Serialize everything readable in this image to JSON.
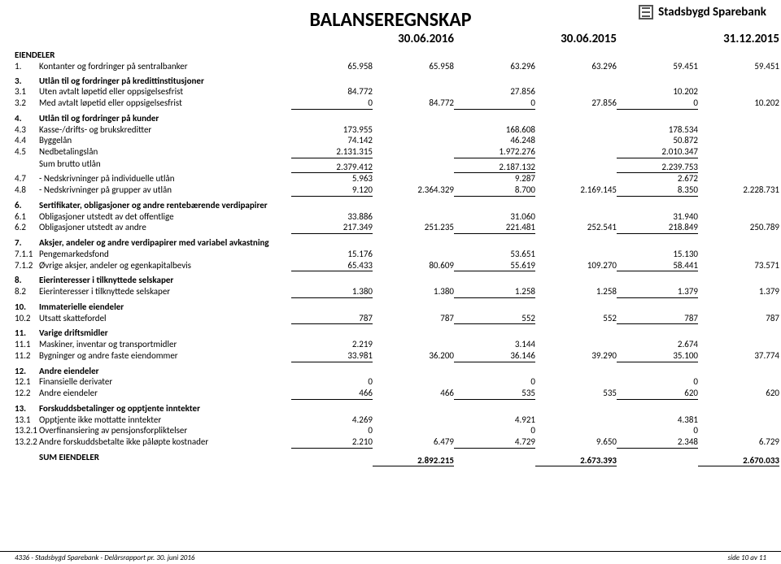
{
  "brand": "Stadsbygd Sparebank",
  "title": "BALANSEREGNSKAP",
  "dates": {
    "d1": "30.06.2016",
    "d2": "30.06.2015",
    "d3": "31.12.2015"
  },
  "sections": [
    {
      "header": "EIENDELER",
      "rows": [
        {
          "n": "1.",
          "t": "Kontanter og fordringer på sentralbanker",
          "v": [
            "65.958",
            "65.958",
            "63.296",
            "63.296",
            "59.451",
            "59.451"
          ]
        }
      ]
    },
    {
      "header": "",
      "rows": [
        {
          "n": "3.",
          "t": "Utlån til og fordringer på kredittinstitusjoner",
          "bold": true,
          "v": [
            "",
            "",
            "",
            "",
            "",
            ""
          ]
        },
        {
          "n": "3.1",
          "t": "Uten avtalt løpetid eller oppsigelsesfrist",
          "v": [
            "84.772",
            "",
            "27.856",
            "",
            "10.202",
            ""
          ]
        },
        {
          "n": "3.2",
          "t": "Med avtalt løpetid eller oppsigelsesfrist",
          "v": [
            "0",
            "84.772",
            "0",
            "27.856",
            "0",
            "10.202"
          ],
          "u": [
            0,
            2,
            4
          ]
        }
      ]
    },
    {
      "header": "",
      "rows": [
        {
          "n": "4.",
          "t": "Utlån til og fordringer på kunder",
          "bold": true,
          "v": [
            "",
            "",
            "",
            "",
            "",
            ""
          ]
        },
        {
          "n": "4.3",
          "t": "Kasse-/drifts- og brukskreditter",
          "v": [
            "173.955",
            "",
            "168.608",
            "",
            "178.534",
            ""
          ]
        },
        {
          "n": "4.4",
          "t": "Byggelån",
          "v": [
            "74.142",
            "",
            "46.248",
            "",
            "50.872",
            ""
          ]
        },
        {
          "n": "4.5",
          "t": "Nedbetalingslån",
          "v": [
            "2.131.315",
            "",
            "1.972.276",
            "",
            "2.010.347",
            ""
          ],
          "u": [
            0,
            2,
            4
          ]
        },
        {
          "n": "",
          "t": "Sum brutto utlån",
          "v": [
            "2.379.412",
            "",
            "2.187.132",
            "",
            "2.239.753",
            ""
          ],
          "u": [
            0,
            2,
            4
          ]
        },
        {
          "n": "4.7",
          "t": "- Nedskrivninger på individuelle utlån",
          "v": [
            "5.963",
            "",
            "9.287",
            "",
            "2.672",
            ""
          ]
        },
        {
          "n": "4.8",
          "t": "- Nedskrivninger på grupper av utlån",
          "v": [
            "9.120",
            "2.364.329",
            "8.700",
            "2.169.145",
            "8.350",
            "2.228.731"
          ],
          "u": [
            0,
            2,
            4
          ]
        }
      ]
    },
    {
      "header": "",
      "rows": [
        {
          "n": "6.",
          "t": "Sertifikater, obligasjoner og andre rentebærende verdipapirer",
          "bold": true,
          "v": [
            "",
            "",
            "",
            "",
            "",
            ""
          ]
        },
        {
          "n": "6.1",
          "t": "Obligasjoner utstedt av det offentlige",
          "v": [
            "33.886",
            "",
            "31.060",
            "",
            "31.940",
            ""
          ]
        },
        {
          "n": "6.2",
          "t": "Obligasjoner utstedt av andre",
          "v": [
            "217.349",
            "251.235",
            "221.481",
            "252.541",
            "218.849",
            "250.789"
          ],
          "u": [
            0,
            2,
            4
          ]
        }
      ]
    },
    {
      "header": "",
      "rows": [
        {
          "n": "7.",
          "t": "Aksjer, andeler og andre verdipapirer med variabel avkastning",
          "bold": true,
          "v": [
            "",
            "",
            "",
            "",
            "",
            ""
          ]
        },
        {
          "n": "7.1.1",
          "t": "Pengemarkedsfond",
          "v": [
            "15.176",
            "",
            "53.651",
            "",
            "15.130",
            ""
          ]
        },
        {
          "n": "7.1.2",
          "t": "Øvrige aksjer, andeler og egenkapitalbevis",
          "v": [
            "65.433",
            "80.609",
            "55.619",
            "109.270",
            "58.441",
            "73.571"
          ],
          "u": [
            0,
            2,
            4
          ]
        }
      ]
    },
    {
      "header": "",
      "rows": [
        {
          "n": "8.",
          "t": "Eierinteresser i tilknyttede selskaper",
          "bold": true,
          "v": [
            "",
            "",
            "",
            "",
            "",
            ""
          ]
        },
        {
          "n": "8.2",
          "t": "Eierinteresser i tilknyttede selskaper",
          "v": [
            "1.380",
            "1.380",
            "1.258",
            "1.258",
            "1.379",
            "1.379"
          ],
          "u": [
            0,
            2,
            4
          ]
        }
      ]
    },
    {
      "header": "",
      "rows": [
        {
          "n": "10.",
          "t": "Immaterielle eiendeler",
          "bold": true,
          "v": [
            "",
            "",
            "",
            "",
            "",
            ""
          ]
        },
        {
          "n": "10.2",
          "t": "Utsatt skattefordel",
          "v": [
            "787",
            "787",
            "552",
            "552",
            "787",
            "787"
          ],
          "u": [
            0,
            2,
            4
          ]
        }
      ]
    },
    {
      "header": "",
      "rows": [
        {
          "n": "11.",
          "t": "Varige driftsmidler",
          "bold": true,
          "v": [
            "",
            "",
            "",
            "",
            "",
            ""
          ]
        },
        {
          "n": "11.1",
          "t": "Maskiner, inventar og transportmidler",
          "v": [
            "2.219",
            "",
            "3.144",
            "",
            "2.674",
            ""
          ]
        },
        {
          "n": "11.2",
          "t": "Bygninger og andre faste eiendommer",
          "v": [
            "33.981",
            "36.200",
            "36.146",
            "39.290",
            "35.100",
            "37.774"
          ],
          "u": [
            0,
            2,
            4
          ]
        }
      ]
    },
    {
      "header": "",
      "rows": [
        {
          "n": "12.",
          "t": "Andre eiendeler",
          "bold": true,
          "v": [
            "",
            "",
            "",
            "",
            "",
            ""
          ]
        },
        {
          "n": "12.1",
          "t": "Finansielle derivater",
          "v": [
            "0",
            "",
            "0",
            "",
            "0",
            ""
          ]
        },
        {
          "n": "12.2",
          "t": "Andre eiendeler",
          "v": [
            "466",
            "466",
            "535",
            "535",
            "620",
            "620"
          ],
          "u": [
            0,
            2,
            4
          ]
        }
      ]
    },
    {
      "header": "",
      "rows": [
        {
          "n": "13.",
          "t": "Forskuddsbetalinger og opptjente inntekter",
          "bold": true,
          "v": [
            "",
            "",
            "",
            "",
            "",
            ""
          ]
        },
        {
          "n": "13.1",
          "t": "Opptjente ikke mottatte inntekter",
          "v": [
            "4.269",
            "",
            "4.921",
            "",
            "4.381",
            ""
          ]
        },
        {
          "n": "13.2.1",
          "t": "Overfinansiering av pensjonsforpliktelser",
          "v": [
            "0",
            "",
            "0",
            "",
            "0",
            ""
          ]
        },
        {
          "n": "13.2.2",
          "t": "Andre forskuddsbetalte ikke påløpte kostnader",
          "v": [
            "2.210",
            "6.479",
            "4.729",
            "9.650",
            "2.348",
            "6.729"
          ],
          "u": [
            0,
            2,
            4
          ]
        }
      ]
    },
    {
      "header": "",
      "rows": [
        {
          "n": "",
          "t": "SUM EIENDELER",
          "bold": true,
          "v": [
            "",
            "2.892.215",
            "",
            "2.673.393",
            "",
            "2.670.033"
          ],
          "u": [
            1,
            3,
            5
          ]
        }
      ]
    }
  ],
  "footer_left": "4336  -  Stadsbygd Sparebank  -  Delårsrapport pr.  30. juni 2016",
  "footer_right": "side 10 av 11"
}
